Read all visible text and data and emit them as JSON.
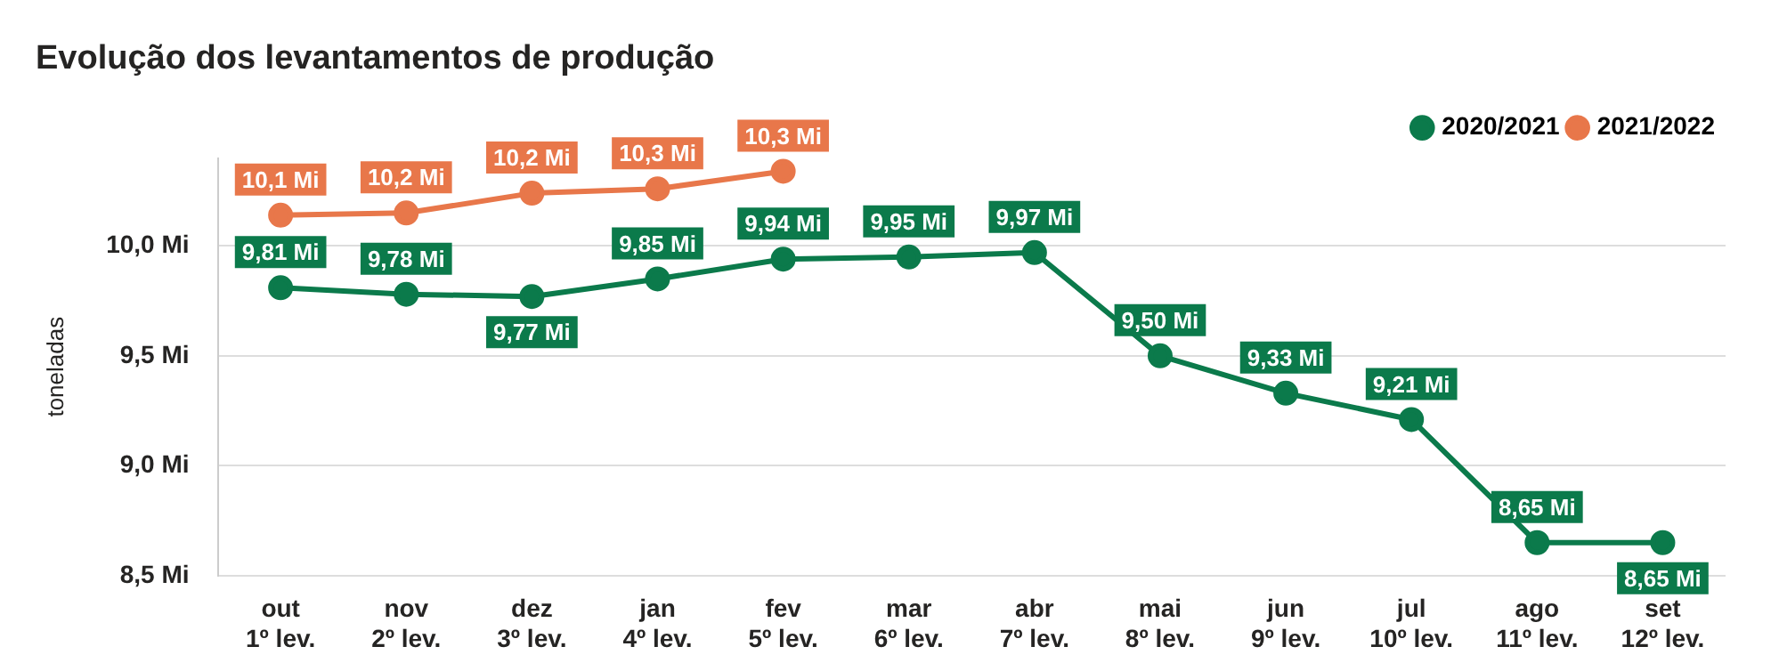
{
  "chart_data": {
    "type": "line",
    "title": "Evolução dos levantamentos de produção",
    "ylabel": "toneladas",
    "categories": [
      "out\n1º lev.",
      "nov\n2º lev.",
      "dez\n3º lev.",
      "jan\n4º lev.",
      "fev\n5º lev.",
      "mar\n6º lev.",
      "abr\n7º lev.",
      "mai\n8º lev.",
      "jun\n9º lev.",
      "jul\n10º lev.",
      "ago\n11º lev.",
      "set\n12º lev."
    ],
    "series": [
      {
        "name": "2020/2021",
        "color": "#0b7a4b",
        "values": [
          9.81,
          9.78,
          9.77,
          9.85,
          9.94,
          9.95,
          9.97,
          9.5,
          9.33,
          9.21,
          8.65,
          8.65
        ],
        "value_labels": [
          "9,81 Mi",
          "9,78 Mi",
          "9,77 Mi",
          "9,85 Mi",
          "9,94 Mi",
          "9,95 Mi",
          "9,97 Mi",
          "9,50 Mi",
          "9,33 Mi",
          "9,21 Mi",
          "8,65 Mi",
          "8,65 Mi"
        ]
      },
      {
        "name": "2021/2022",
        "color": "#e8774a",
        "values": [
          10.14,
          10.15,
          10.24,
          10.26,
          10.34,
          null,
          null,
          null,
          null,
          null,
          null,
          null
        ],
        "value_labels": [
          "10,1 Mi",
          "10,2 Mi",
          "10,2 Mi",
          "10,3 Mi",
          "10,3 Mi",
          null,
          null,
          null,
          null,
          null,
          null,
          null
        ]
      }
    ],
    "ylim": [
      8.5,
      10.4
    ],
    "yticks": [
      {
        "value": 8.5,
        "label": "8,5 Mi"
      },
      {
        "value": 9.0,
        "label": "9,0 Mi"
      },
      {
        "value": 9.5,
        "label": "9,5 Mi"
      },
      {
        "value": 10.0,
        "label": "10,0 Mi"
      }
    ],
    "grid": "y",
    "legend": "top right",
    "marker": "circle",
    "line_style": "solid"
  }
}
